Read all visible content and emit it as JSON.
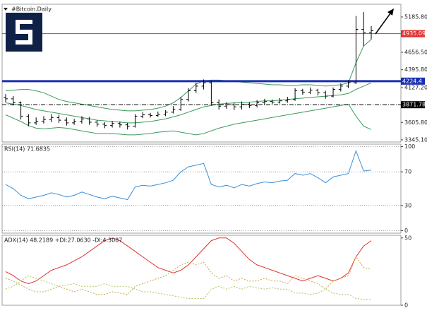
{
  "chart_data": [
    {
      "type": "ohlc",
      "title": "#Bitcoin.Daily",
      "color": "#000000",
      "open": [
        3980,
        3960,
        3900,
        3700,
        3600,
        3620,
        3650,
        3680,
        3640,
        3600,
        3620,
        3660,
        3610,
        3580,
        3560,
        3590,
        3570,
        3550,
        3700,
        3720,
        3710,
        3730,
        3760,
        3800,
        3950,
        4080,
        4150,
        4200,
        3900,
        3850,
        3870,
        3840,
        3880,
        3860,
        3900,
        3920,
        3910,
        3930,
        3950,
        4080,
        4060,
        4090,
        4050,
        4000,
        4100,
        4150,
        4200,
        5000,
        4950
      ],
      "high": [
        4030,
        4000,
        3920,
        3730,
        3680,
        3700,
        3730,
        3720,
        3680,
        3660,
        3700,
        3690,
        3640,
        3610,
        3630,
        3620,
        3600,
        3730,
        3760,
        3750,
        3770,
        3790,
        3850,
        3990,
        4120,
        4200,
        4250,
        4230,
        3950,
        3910,
        3900,
        3920,
        3910,
        3940,
        3960,
        3950,
        3970,
        3990,
        4120,
        4110,
        4130,
        4110,
        4080,
        4130,
        4190,
        4240,
        5200,
        5260,
        5050
      ],
      "low": [
        3910,
        3860,
        3650,
        3550,
        3570,
        3590,
        3610,
        3600,
        3560,
        3570,
        3590,
        3570,
        3540,
        3520,
        3530,
        3530,
        3500,
        3530,
        3670,
        3680,
        3690,
        3700,
        3740,
        3780,
        3920,
        4050,
        4100,
        3860,
        3800,
        3810,
        3790,
        3800,
        3820,
        3830,
        3870,
        3880,
        3890,
        3900,
        3930,
        4020,
        4030,
        4010,
        3960,
        3980,
        4070,
        4120,
        4180,
        4750,
        4850
      ],
      "close": [
        3960,
        3900,
        3700,
        3600,
        3620,
        3650,
        3680,
        3640,
        3600,
        3620,
        3660,
        3610,
        3580,
        3560,
        3590,
        3570,
        3550,
        3700,
        3720,
        3710,
        3730,
        3760,
        3800,
        3950,
        4080,
        4150,
        4200,
        3900,
        3850,
        3870,
        3840,
        3880,
        3860,
        3900,
        3920,
        3910,
        3930,
        3950,
        4080,
        4060,
        4090,
        4050,
        4000,
        4100,
        4150,
        4200,
        5000,
        4950,
        4980
      ],
      "series": [
        {
          "color": "#3a9a5a",
          "values": [
            4080,
            4090,
            4100,
            4100,
            4080,
            4050,
            4000,
            3950,
            3920,
            3900,
            3880,
            3860,
            3840,
            3820,
            3800,
            3790,
            3780,
            3780,
            3790,
            3800,
            3820,
            3850,
            3900,
            3980,
            4080,
            4180,
            4230,
            4240,
            4240,
            4230,
            4220,
            4210,
            4200,
            4190,
            4180,
            4170,
            4170,
            4160,
            4160,
            4170,
            4170,
            4160,
            4150,
            4160,
            4170,
            4200,
            4500,
            4750,
            4850
          ]
        },
        {
          "color": "#3a9a5a",
          "values": [
            3900,
            3880,
            3860,
            3830,
            3800,
            3780,
            3760,
            3740,
            3720,
            3700,
            3680,
            3660,
            3640,
            3630,
            3620,
            3610,
            3600,
            3600,
            3610,
            3620,
            3640,
            3660,
            3690,
            3720,
            3760,
            3800,
            3840,
            3860,
            3880,
            3890,
            3900,
            3900,
            3910,
            3920,
            3930,
            3930,
            3940,
            3950,
            3960,
            3970,
            3980,
            3990,
            4000,
            4010,
            4020,
            4040,
            4100,
            4150,
            4200
          ]
        },
        {
          "color": "#3a9a5a",
          "values": [
            3720,
            3670,
            3620,
            3560,
            3520,
            3510,
            3520,
            3530,
            3520,
            3500,
            3480,
            3460,
            3440,
            3440,
            3440,
            3430,
            3420,
            3420,
            3430,
            3440,
            3460,
            3470,
            3480,
            3460,
            3440,
            3420,
            3440,
            3480,
            3520,
            3550,
            3580,
            3600,
            3620,
            3640,
            3660,
            3680,
            3700,
            3720,
            3740,
            3760,
            3780,
            3800,
            3820,
            3840,
            3860,
            3880,
            3700,
            3550,
            3500
          ]
        }
      ],
      "levels": [
        {
          "value": 4935.09,
          "color": "#e03030",
          "width": 1,
          "style": "solid"
        },
        {
          "value": 4224.4,
          "color": "#1a2fb0",
          "width": 3,
          "style": "solid"
        },
        {
          "value": 3871.78,
          "color": "#000000",
          "width": 1,
          "style": "dashdot"
        }
      ],
      "ylim": [
        3313,
        5376
      ],
      "yticks": [
        {
          "value": 5185.8,
          "label": "5185.80"
        },
        {
          "value": 4656.5,
          "label": "4656.50"
        },
        {
          "value": 4395.8,
          "label": "4395.80"
        },
        {
          "value": 4127.2,
          "label": "4127.20"
        },
        {
          "value": 3605.8,
          "label": "3605.80"
        },
        {
          "value": 3345.1,
          "label": "3345.10"
        }
      ],
      "grid": false
    },
    {
      "type": "line",
      "title": "RSI(14) 71.6835",
      "series": [
        {
          "color": "#3a8fd8",
          "dashed": false,
          "values": [
            55,
            50,
            42,
            38,
            40,
            42,
            45,
            43,
            40,
            42,
            46,
            43,
            40,
            38,
            41,
            39,
            37,
            52,
            54,
            53,
            55,
            57,
            60,
            70,
            76,
            78,
            80,
            55,
            52,
            54,
            51,
            55,
            53,
            56,
            58,
            57,
            59,
            60,
            68,
            66,
            68,
            63,
            57,
            64,
            66,
            68,
            95,
            71,
            72
          ]
        }
      ],
      "ylim": [
        -3,
        103
      ],
      "yticks": [
        0,
        30,
        70,
        100
      ],
      "grid": true
    },
    {
      "type": "line",
      "title": "ADX(14) 48.2189 +DI:27.0630 -DI:4.3087",
      "series": [
        {
          "color": "#e03030",
          "dashed": false,
          "values": [
            25,
            22,
            18,
            16,
            18,
            22,
            26,
            28,
            30,
            33,
            36,
            40,
            44,
            48,
            50,
            48,
            44,
            40,
            36,
            32,
            28,
            26,
            24,
            26,
            30,
            36,
            42,
            48,
            50,
            50,
            46,
            40,
            34,
            30,
            28,
            26,
            24,
            22,
            20,
            18,
            20,
            22,
            20,
            18,
            20,
            24,
            36,
            44,
            48
          ]
        },
        {
          "color": "#c8a83c",
          "dashed": true,
          "values": [
            20,
            18,
            15,
            12,
            10,
            10,
            12,
            14,
            12,
            10,
            12,
            10,
            8,
            8,
            10,
            9,
            8,
            14,
            16,
            18,
            20,
            22,
            26,
            30,
            32,
            30,
            32,
            24,
            20,
            22,
            18,
            20,
            18,
            18,
            20,
            18,
            18,
            16,
            22,
            20,
            18,
            16,
            12,
            18,
            20,
            22,
            36,
            28,
            27
          ]
        },
        {
          "color": "#a8c860",
          "dashed": true,
          "values": [
            12,
            14,
            18,
            22,
            20,
            18,
            16,
            14,
            15,
            16,
            14,
            14,
            14,
            16,
            14,
            14,
            14,
            12,
            10,
            10,
            9,
            8,
            7,
            6,
            5,
            5,
            5,
            12,
            14,
            12,
            14,
            12,
            14,
            13,
            12,
            13,
            12,
            12,
            9,
            9,
            8,
            9,
            12,
            9,
            8,
            8,
            5,
            4.5,
            4.3
          ]
        }
      ],
      "ylim": [
        0,
        52
      ],
      "yticks": [
        0,
        50
      ],
      "grid": false
    }
  ]
}
